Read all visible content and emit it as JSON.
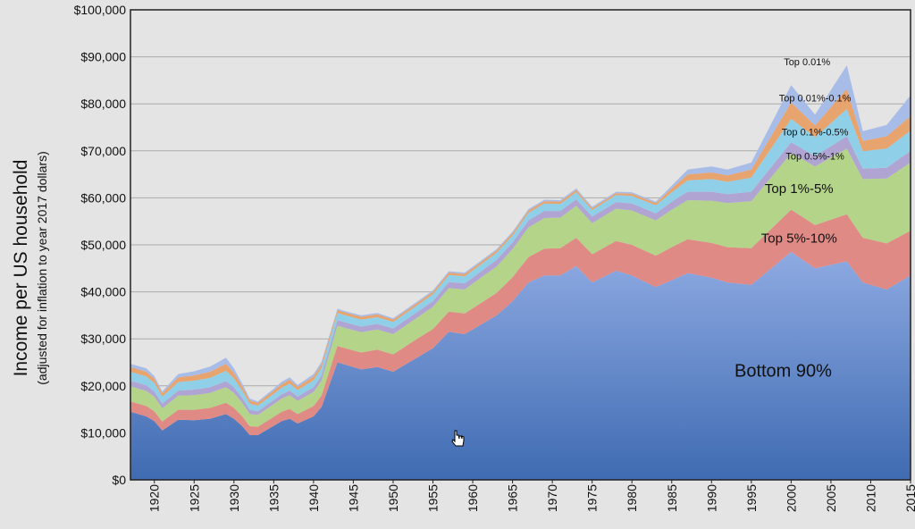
{
  "chart_data": {
    "type": "area",
    "stacked": true,
    "title": "",
    "ylabel": "Income per US household",
    "ylabel_sub": "(adjusted for inflation to year 2017 dollars)",
    "xlabel": "",
    "ylim": [
      0,
      100000
    ],
    "xlim": [
      1917,
      2015
    ],
    "y_ticks": [
      0,
      10000,
      20000,
      30000,
      40000,
      50000,
      60000,
      70000,
      80000,
      90000,
      100000
    ],
    "y_tick_labels": [
      "$0",
      "$10,000",
      "$20,000",
      "$30,000",
      "$40,000",
      "$50,000",
      "$60,000",
      "$70,000",
      "$80,000",
      "$90,000",
      "$100,000"
    ],
    "x_ticks": [
      1920,
      1925,
      1930,
      1935,
      1940,
      1945,
      1950,
      1955,
      1960,
      1965,
      1970,
      1975,
      1980,
      1985,
      1990,
      1995,
      2000,
      2005,
      2010,
      2015
    ],
    "x_tick_labels": [
      "1920",
      "1925",
      "1930",
      "1935",
      "1940",
      "1945",
      "1950",
      "1955",
      "1960",
      "1965",
      "1970",
      "1975",
      "1980",
      "1985",
      "1990",
      "1995",
      "2000",
      "2005",
      "2010",
      "2015"
    ],
    "grid": true,
    "x": [
      1917,
      1919,
      1920,
      1921,
      1923,
      1925,
      1927,
      1929,
      1930,
      1931,
      1932,
      1933,
      1935,
      1936,
      1937,
      1938,
      1940,
      1941,
      1943,
      1944,
      1946,
      1948,
      1950,
      1953,
      1955,
      1957,
      1959,
      1961,
      1963,
      1965,
      1967,
      1969,
      1971,
      1973,
      1975,
      1978,
      1980,
      1983,
      1985,
      1987,
      1990,
      1992,
      1995,
      2000,
      2003,
      2007,
      2009,
      2012,
      2015
    ],
    "series": [
      {
        "name": "Bottom 90%",
        "color": "#7f9fd8",
        "label": "Bottom 90%",
        "values": [
          14500,
          13500,
          12500,
          10500,
          12800,
          12700,
          13000,
          14000,
          13000,
          11500,
          9500,
          9500,
          11500,
          12500,
          13000,
          12000,
          13500,
          15500,
          25000,
          24500,
          23500,
          24000,
          23000,
          26000,
          28000,
          31500,
          31000,
          33000,
          35000,
          38000,
          42000,
          43500,
          43500,
          45500,
          42000,
          44500,
          43500,
          41000,
          42500,
          44000,
          43000,
          42000,
          41500,
          48500,
          45000,
          46500,
          42000,
          40500,
          43500
        ]
      },
      {
        "name": "Top 5%-10%",
        "color": "#e08a86",
        "label": "Top 5%-10%",
        "values": [
          2200,
          2200,
          2100,
          1900,
          2100,
          2200,
          2300,
          2400,
          2300,
          2100,
          1900,
          1800,
          1900,
          2000,
          2100,
          2000,
          2200,
          2400,
          3500,
          3500,
          3600,
          3700,
          3700,
          4000,
          4100,
          4300,
          4400,
          4600,
          4800,
          5100,
          5400,
          5700,
          5800,
          6000,
          6000,
          6300,
          6500,
          6700,
          7000,
          7200,
          7400,
          7500,
          7800,
          9000,
          9200,
          10000,
          9500,
          9800,
          9500
        ]
      },
      {
        "name": "Top 1%-5%",
        "color": "#b4d48a",
        "label": "Top 1%-5%",
        "values": [
          3200,
          3200,
          3100,
          2800,
          3000,
          3100,
          3200,
          3300,
          3200,
          2900,
          2600,
          2500,
          2700,
          2800,
          2900,
          2800,
          3000,
          3200,
          4300,
          4300,
          4300,
          4300,
          4300,
          4500,
          4700,
          5000,
          5100,
          5400,
          5600,
          6000,
          6300,
          6500,
          6500,
          6800,
          6600,
          6900,
          7300,
          7500,
          8000,
          8300,
          9000,
          9400,
          10000,
          12000,
          12500,
          14000,
          12500,
          13800,
          14500
        ]
      },
      {
        "name": "Top 0.5%-1%",
        "color": "#b0a4d2",
        "label": "Top 0.5%-1%",
        "values": [
          1200,
          1200,
          1100,
          1000,
          1100,
          1200,
          1200,
          1300,
          1200,
          1000,
          900,
          800,
          900,
          900,
          1000,
          900,
          1000,
          1100,
          1200,
          1200,
          1200,
          1200,
          1200,
          1200,
          1200,
          1300,
          1300,
          1300,
          1400,
          1400,
          1500,
          1500,
          1400,
          1400,
          1400,
          1400,
          1500,
          1500,
          1700,
          1800,
          1900,
          1900,
          2000,
          2300,
          2200,
          2600,
          2200,
          2300,
          2500
        ]
      },
      {
        "name": "Top 0.1%-0.5%",
        "color": "#8fd0e8",
        "label": "Top 0.1%-0.5%",
        "values": [
          1900,
          1900,
          1800,
          1500,
          1800,
          1900,
          2000,
          2200,
          1900,
          1600,
          1300,
          1200,
          1300,
          1400,
          1500,
          1400,
          1500,
          1600,
          1500,
          1500,
          1500,
          1400,
          1400,
          1400,
          1500,
          1500,
          1500,
          1500,
          1500,
          1500,
          1600,
          1600,
          1500,
          1500,
          1400,
          1500,
          1600,
          1700,
          2000,
          2400,
          2700,
          2600,
          3000,
          5000,
          4000,
          5800,
          3700,
          4100,
          4300
        ]
      },
      {
        "name": "Top 0.01%-0.1%",
        "color": "#e8a46e",
        "label": "Top 0.01%-0.1%",
        "values": [
          1000,
          1000,
          900,
          700,
          1000,
          1100,
          1300,
          1500,
          1200,
          900,
          700,
          600,
          700,
          800,
          800,
          700,
          800,
          800,
          600,
          600,
          600,
          600,
          500,
          500,
          500,
          500,
          500,
          500,
          500,
          500,
          500,
          500,
          500,
          500,
          400,
          400,
          500,
          500,
          800,
          1300,
          1400,
          1400,
          1700,
          3500,
          2500,
          4300,
          2200,
          2600,
          3100
        ]
      },
      {
        "name": "Top 0.01%",
        "color": "#a8bce8",
        "label": "Top 0.01%",
        "values": [
          700,
          700,
          600,
          400,
          700,
          900,
          1100,
          1300,
          900,
          600,
          400,
          300,
          400,
          500,
          500,
          400,
          500,
          500,
          300,
          300,
          300,
          300,
          300,
          300,
          300,
          300,
          300,
          300,
          300,
          300,
          300,
          300,
          300,
          300,
          300,
          300,
          300,
          300,
          600,
          1000,
          1300,
          1200,
          1500,
          3700,
          2300,
          5000,
          2100,
          2400,
          4400
        ]
      }
    ],
    "annotations": [
      {
        "text": "Bottom 90%",
        "series": "Bottom 90%",
        "year": 1999,
        "value": 22000,
        "size": "lg"
      },
      {
        "text": "Top 5%-10%",
        "series": "Top 5%-10%",
        "year": 2001,
        "value": 50500,
        "size": "md"
      },
      {
        "text": "Top 1%-5%",
        "series": "Top 1%-5%",
        "year": 2001,
        "value": 61000,
        "size": "md"
      },
      {
        "text": "Top 0.5%-1%",
        "series": "Top 0.5%-1%",
        "year": 2003,
        "value": 68200,
        "size": "sm"
      },
      {
        "text": "Top 0.1%-0.5%",
        "series": "Top 0.1%-0.5%",
        "year": 2003,
        "value": 73300,
        "size": "sm"
      },
      {
        "text": "Top 0.01%-0.1%",
        "series": "Top 0.01%-0.1%",
        "year": 2003,
        "value": 80500,
        "size": "sm"
      },
      {
        "text": "Top 0.01%",
        "series": "Top 0.01%",
        "year": 2002,
        "value": 88200,
        "size": "sm"
      }
    ]
  }
}
